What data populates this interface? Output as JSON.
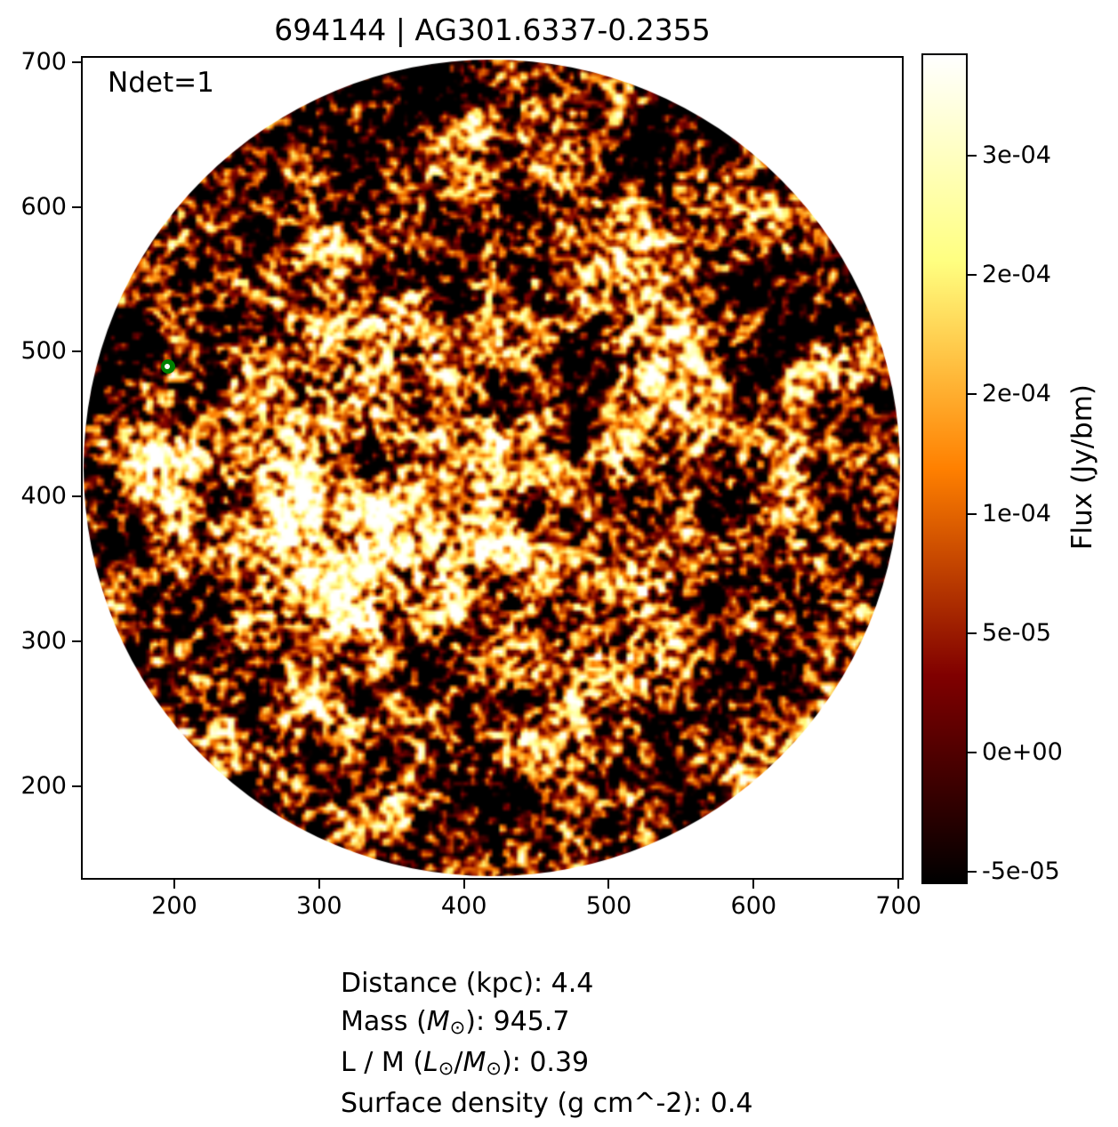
{
  "figure": {
    "title": "694144 | AG301.6337-0.2355",
    "annotation": "Ndet=1"
  },
  "chart_data": {
    "type": "heatmap",
    "title": "694144 | AG301.6337-0.2355",
    "annotation": "Ndet=1",
    "x_ticks": [
      200,
      300,
      400,
      500,
      600,
      700
    ],
    "y_ticks": [
      700,
      600,
      500,
      400,
      300,
      200
    ],
    "xlim": [
      136,
      701
    ],
    "ylim": [
      137,
      702
    ],
    "colormap": "afmhot",
    "image_description": "Circular flux cutout filled with mottled filamentary hot-colormap noise; mostly dark with orange-yellow filaments and a bright saturated extended region left of and below center near data (340, 380); white background outside the circle.",
    "colorbar": {
      "label": "Flux (Jy/bm)",
      "tick_labels": [
        "3e-04",
        "2e-04",
        "2e-04",
        "1e-04",
        "5e-05",
        "0e+00",
        "-5e-05"
      ]
    },
    "marker": {
      "shape": "circle",
      "color": "#008000",
      "core_color": "#ffffff",
      "x": 196,
      "y": 490
    }
  },
  "info": {
    "lines": [
      {
        "segments": [
          {
            "t": "Distance (kpc): 4.4"
          }
        ]
      },
      {
        "segments": [
          {
            "t": "Mass ("
          },
          {
            "t": "M",
            "i": 1
          },
          {
            "t": "⊙",
            "s": 1
          },
          {
            "t": "): 945.7"
          }
        ]
      },
      {
        "segments": [
          {
            "t": "L / M ("
          },
          {
            "t": "L",
            "i": 1
          },
          {
            "t": "⊙",
            "s": 1
          },
          {
            "t": "/"
          },
          {
            "t": "M",
            "i": 1
          },
          {
            "t": "⊙",
            "s": 1
          },
          {
            "t": "): 0.39"
          }
        ]
      },
      {
        "segments": [
          {
            "t": "Surface density (g cm^-2): 0.4"
          }
        ]
      }
    ]
  }
}
